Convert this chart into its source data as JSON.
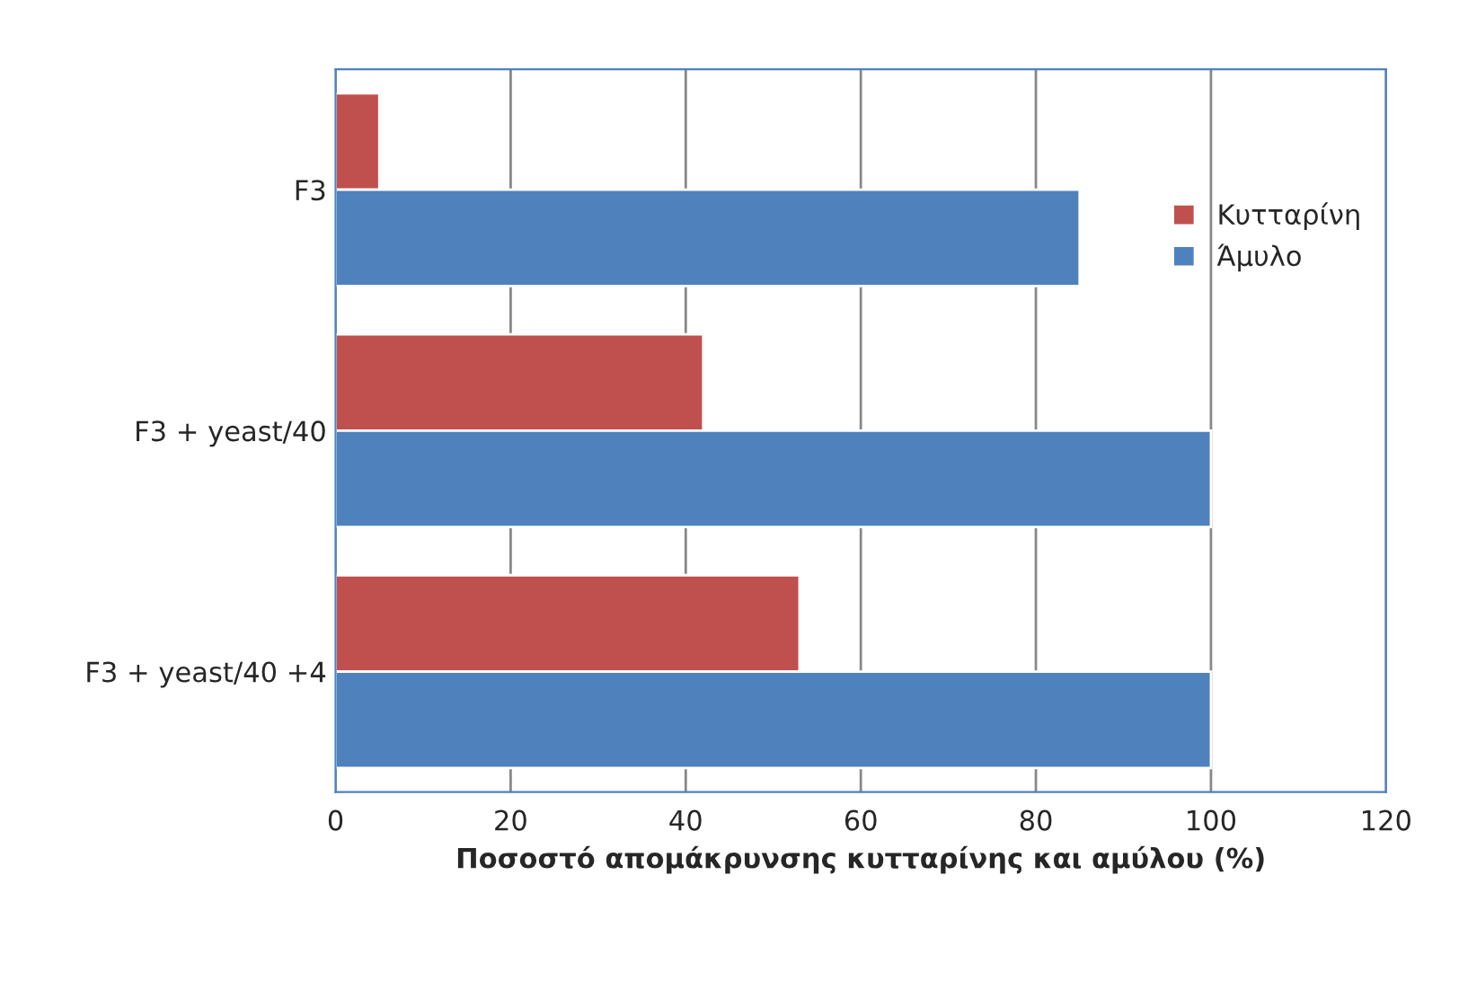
{
  "chart_data": {
    "type": "bar",
    "orientation": "horizontal",
    "xlabel": "Ποσοστό απομάκρυνσης κυτταρίνης και αμύλου (%)",
    "categories": [
      "F3",
      "F3 + yeast/40",
      "F3 + yeast/40 +4"
    ],
    "series": [
      {
        "name": "Κυτταρίνη",
        "color": "#c0504d",
        "values": [
          5,
          42,
          53
        ]
      },
      {
        "name": "Άμυλο",
        "color": "#4f81bd",
        "values": [
          85,
          100,
          100
        ]
      }
    ],
    "xlim": [
      0,
      120
    ],
    "xticks": [
      0,
      20,
      40,
      60,
      80,
      100,
      120
    ],
    "grid": "x",
    "legend": "top right"
  }
}
